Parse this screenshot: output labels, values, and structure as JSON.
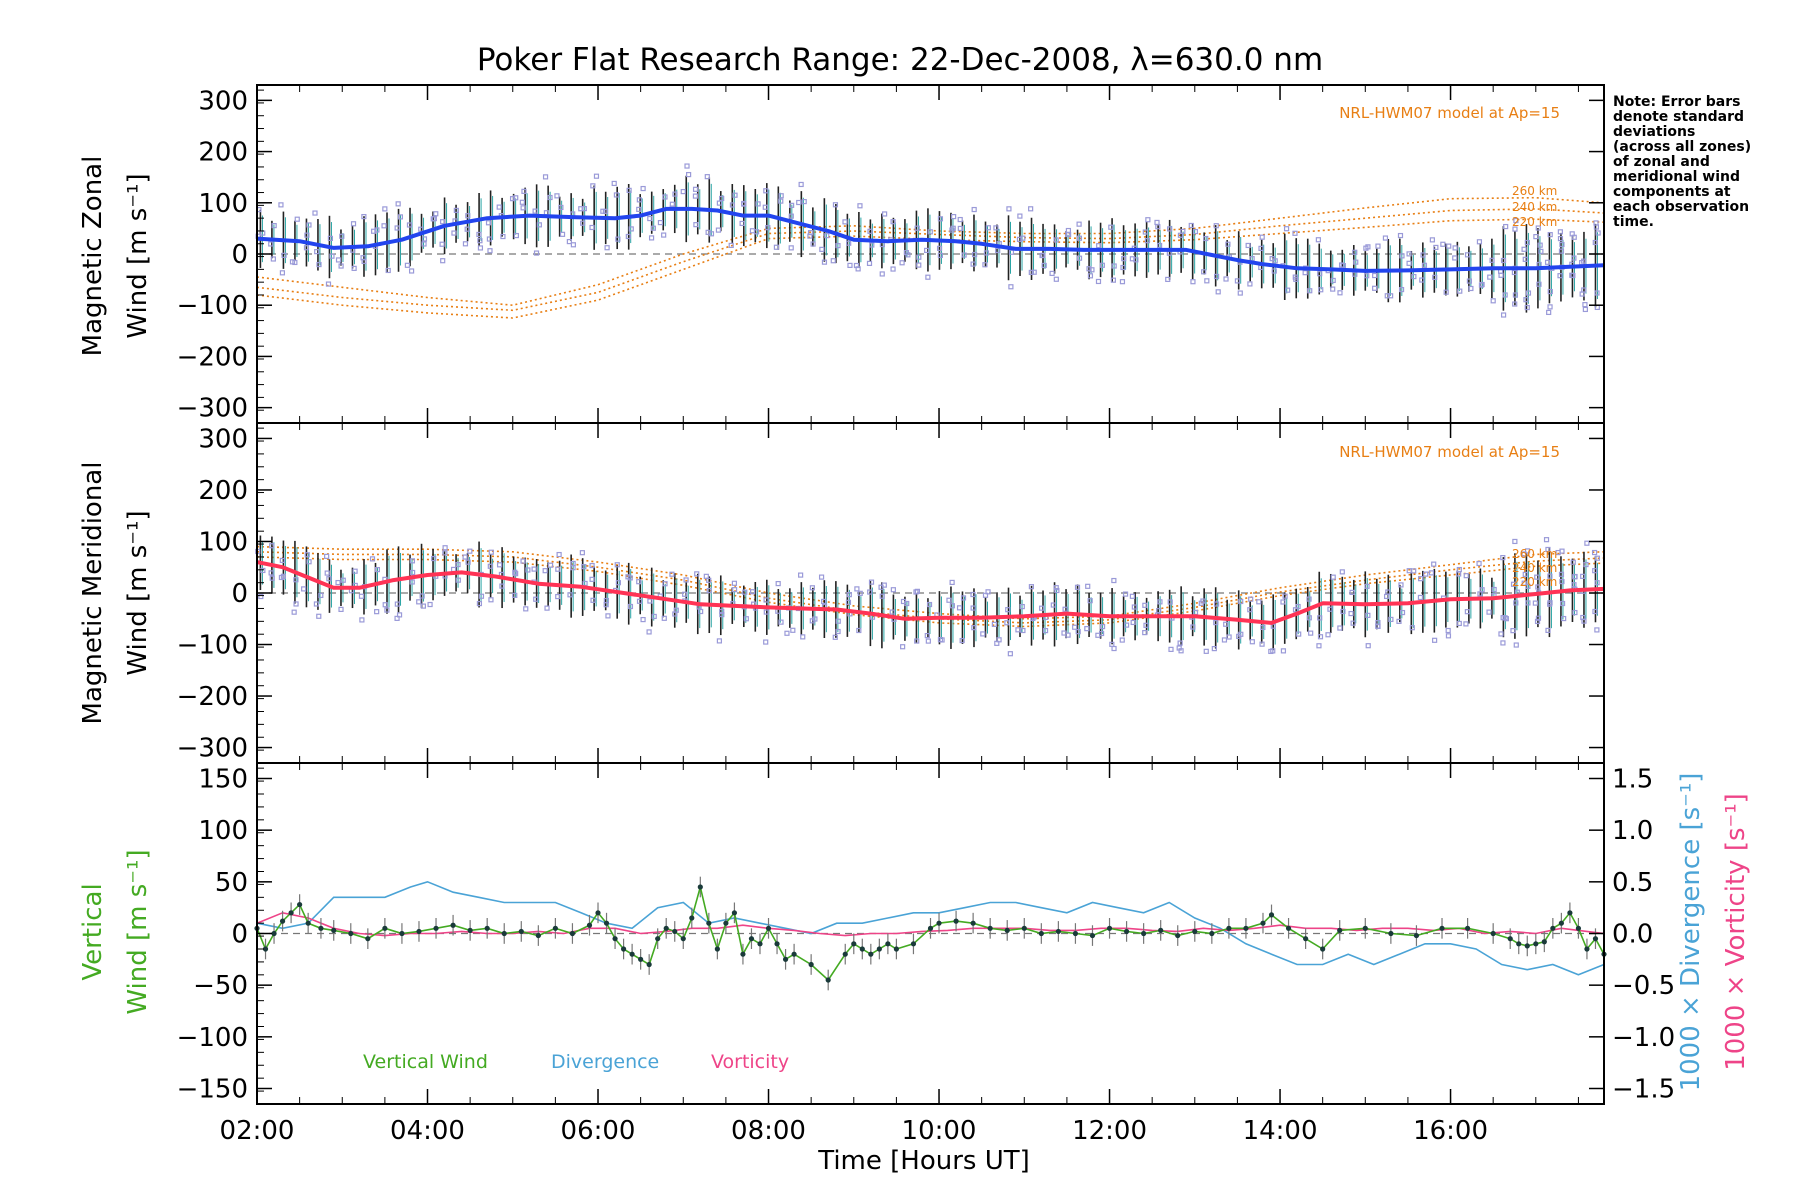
{
  "title": "Poker Flat Research Range: 22-Dec-2008, λ=630.0 nm",
  "note_lines": [
    "Note: Error bars",
    "denote standard",
    "deviations",
    "(across all zones)",
    "of zonal and",
    "meridional wind",
    "components at",
    "each observation",
    "time."
  ],
  "colors": {
    "zonal": "#2244ee",
    "meridional": "#ff3355",
    "model": "#e87f14",
    "vertical": "#44aa22",
    "divergence": "#4aa3d6",
    "vorticity": "#ee4488",
    "zone_points": "#9a9ad8",
    "error_bars": "#222222"
  },
  "x_axis": {
    "label": "Time [Hours UT]",
    "ticks": [
      "02:00",
      "04:00",
      "06:00",
      "08:00",
      "10:00",
      "12:00",
      "14:00",
      "16:00"
    ],
    "tick_values": [
      2,
      4,
      6,
      8,
      10,
      12,
      14,
      16
    ],
    "range": [
      2,
      17.8
    ]
  },
  "chart_data": [
    {
      "type": "line",
      "panel": "zonal",
      "ylabel_line1": "Magnetic Zonal",
      "ylabel_line2": "Wind [m s⁻¹]",
      "ylim": [
        -330,
        330
      ],
      "y_ticks": [
        "300",
        "200",
        "100",
        "0",
        "−100",
        "−200",
        "−300"
      ],
      "y_tick_values": [
        300,
        200,
        100,
        0,
        -100,
        -200,
        -300
      ],
      "model_label": "NRL-HWM07 model at Ap=15",
      "model_altitudes": [
        "260 km",
        "240 km",
        "220 km"
      ],
      "series": [
        {
          "name": "Zonal wind",
          "x": [
            2.0,
            2.5,
            2.9,
            3.3,
            3.7,
            4.2,
            4.7,
            5.2,
            5.7,
            6.2,
            6.5,
            6.8,
            7.1,
            7.4,
            7.7,
            8.0,
            8.3,
            8.7,
            9.0,
            9.4,
            9.8,
            10.2,
            10.5,
            10.9,
            11.3,
            11.7,
            12.1,
            12.5,
            12.9,
            13.2,
            13.5,
            13.8,
            14.2,
            14.6,
            15.0,
            15.5,
            16.0,
            16.5,
            17.0,
            17.4,
            17.8
          ],
          "y": [
            30,
            25,
            12,
            15,
            28,
            55,
            70,
            75,
            72,
            70,
            75,
            88,
            88,
            85,
            75,
            75,
            62,
            45,
            28,
            25,
            28,
            25,
            20,
            10,
            10,
            8,
            8,
            8,
            8,
            -2,
            -12,
            -20,
            -28,
            -30,
            -33,
            -32,
            -30,
            -28,
            -28,
            -25,
            -22
          ]
        },
        {
          "name": "Model 260 km",
          "x": [
            2.0,
            3.0,
            4.0,
            5.0,
            6.0,
            7.0,
            8.0,
            9.0,
            10.0,
            11.0,
            12.0,
            13.0,
            14.0,
            15.0,
            16.0,
            17.0,
            17.8
          ],
          "y": [
            -45,
            -65,
            -85,
            -100,
            -60,
            0,
            50,
            55,
            45,
            40,
            40,
            50,
            70,
            90,
            108,
            110,
            100
          ]
        },
        {
          "name": "Model 240 km",
          "x": [
            2.0,
            3.0,
            4.0,
            5.0,
            6.0,
            7.0,
            8.0,
            9.0,
            10.0,
            11.0,
            12.0,
            13.0,
            14.0,
            15.0,
            16.0,
            17.0,
            17.8
          ],
          "y": [
            -65,
            -85,
            -100,
            -110,
            -75,
            -15,
            40,
            45,
            38,
            32,
            30,
            38,
            55,
            70,
            85,
            88,
            80
          ]
        },
        {
          "name": "Model 220 km",
          "x": [
            2.0,
            3.0,
            4.0,
            5.0,
            6.0,
            7.0,
            8.0,
            9.0,
            10.0,
            11.0,
            12.0,
            13.0,
            14.0,
            15.0,
            16.0,
            17.0,
            17.8
          ],
          "y": [
            -80,
            -100,
            -115,
            -125,
            -90,
            -30,
            30,
            35,
            28,
            24,
            22,
            28,
            40,
            52,
            65,
            68,
            62
          ]
        }
      ]
    },
    {
      "type": "line",
      "panel": "meridional",
      "ylabel_line1": "Magnetic Meridional",
      "ylabel_line2": "Wind [m s⁻¹]",
      "ylim": [
        -330,
        330
      ],
      "y_ticks": [
        "300",
        "200",
        "100",
        "0",
        "−100",
        "−200",
        "−300"
      ],
      "y_tick_values": [
        300,
        200,
        100,
        0,
        -100,
        -200,
        -300
      ],
      "model_label": "NRL-HWM07 model at Ap=15",
      "model_altitudes": [
        "260 km",
        "240 km",
        "220 km"
      ],
      "series": [
        {
          "name": "Meridional wind",
          "x": [
            2.0,
            2.3,
            2.6,
            2.9,
            3.2,
            3.6,
            4.0,
            4.4,
            4.8,
            5.3,
            5.8,
            6.3,
            6.8,
            7.2,
            7.6,
            8.0,
            8.4,
            8.8,
            9.2,
            9.6,
            10.0,
            10.5,
            11.0,
            11.5,
            12.0,
            12.5,
            13.0,
            13.5,
            13.9,
            14.2,
            14.5,
            15.0,
            15.5,
            16.0,
            16.5,
            17.0,
            17.4,
            17.8
          ],
          "y": [
            60,
            50,
            30,
            10,
            10,
            25,
            35,
            40,
            32,
            18,
            12,
            0,
            -12,
            -22,
            -25,
            -28,
            -30,
            -32,
            -40,
            -50,
            -48,
            -48,
            -45,
            -40,
            -45,
            -45,
            -45,
            -52,
            -58,
            -40,
            -20,
            -22,
            -20,
            -12,
            -10,
            -2,
            5,
            8
          ]
        },
        {
          "name": "Model 260 km",
          "x": [
            2.0,
            3.0,
            4.0,
            5.0,
            6.0,
            7.0,
            8.0,
            9.0,
            10.0,
            11.0,
            12.0,
            13.0,
            14.0,
            15.0,
            16.0,
            17.0,
            17.8
          ],
          "y": [
            90,
            85,
            85,
            80,
            60,
            35,
            0,
            -25,
            -40,
            -50,
            -45,
            -20,
            10,
            35,
            55,
            75,
            80
          ]
        },
        {
          "name": "Model 240 km",
          "x": [
            2.0,
            3.0,
            4.0,
            5.0,
            6.0,
            7.0,
            8.0,
            9.0,
            10.0,
            11.0,
            12.0,
            13.0,
            14.0,
            15.0,
            16.0,
            17.0,
            17.8
          ],
          "y": [
            80,
            75,
            75,
            70,
            50,
            25,
            -10,
            -35,
            -50,
            -58,
            -52,
            -28,
            2,
            25,
            45,
            62,
            68
          ]
        },
        {
          "name": "Model 220 km",
          "x": [
            2.0,
            3.0,
            4.0,
            5.0,
            6.0,
            7.0,
            8.0,
            9.0,
            10.0,
            11.0,
            12.0,
            13.0,
            14.0,
            15.0,
            16.0,
            17.0,
            17.8
          ],
          "y": [
            70,
            65,
            65,
            60,
            42,
            15,
            -18,
            -42,
            -58,
            -65,
            -58,
            -35,
            -5,
            18,
            35,
            52,
            58
          ]
        }
      ]
    },
    {
      "type": "line",
      "panel": "vertical",
      "ylabel_line1": "Vertical",
      "ylabel_line2": "Wind [m s⁻¹]",
      "ylim": [
        -165,
        165
      ],
      "y_ticks": [
        "150",
        "100",
        "50",
        "0",
        "−50",
        "−100",
        "−150"
      ],
      "y_tick_values": [
        150,
        100,
        50,
        0,
        -50,
        -100,
        -150
      ],
      "y2_label_divergence": "1000 × Divergence [s⁻¹]",
      "y2_label_vorticity": "1000 × Vorticity [s⁻¹]",
      "y2_ticks": [
        "1.5",
        "1.0",
        "0.5",
        "0.0",
        "−0.5",
        "−1.0",
        "−1.5"
      ],
      "y2_tick_values": [
        1.5,
        1.0,
        0.5,
        0.0,
        -0.5,
        -1.0,
        -1.5
      ],
      "y2lim": [
        -1.65,
        1.65
      ],
      "legend": [
        "Vertical Wind",
        "Divergence",
        "Vorticity"
      ],
      "series": [
        {
          "name": "Vertical Wind",
          "x": [
            2.0,
            2.1,
            2.2,
            2.3,
            2.4,
            2.5,
            2.6,
            2.75,
            2.9,
            3.1,
            3.3,
            3.5,
            3.7,
            3.9,
            4.1,
            4.3,
            4.5,
            4.7,
            4.9,
            5.1,
            5.3,
            5.5,
            5.7,
            5.9,
            6.0,
            6.1,
            6.2,
            6.3,
            6.4,
            6.5,
            6.6,
            6.7,
            6.8,
            6.9,
            7.0,
            7.1,
            7.2,
            7.3,
            7.4,
            7.5,
            7.6,
            7.7,
            7.8,
            7.9,
            8.0,
            8.1,
            8.2,
            8.3,
            8.5,
            8.7,
            8.9,
            9.0,
            9.1,
            9.2,
            9.3,
            9.4,
            9.5,
            9.7,
            9.9,
            10.0,
            10.2,
            10.4,
            10.6,
            10.8,
            11.0,
            11.2,
            11.4,
            11.6,
            11.8,
            12.0,
            12.2,
            12.4,
            12.6,
            12.8,
            13.0,
            13.2,
            13.4,
            13.6,
            13.8,
            13.9,
            14.1,
            14.3,
            14.5,
            14.7,
            15.0,
            15.3,
            15.6,
            15.9,
            16.2,
            16.5,
            16.7,
            16.8,
            16.9,
            17.0,
            17.1,
            17.2,
            17.3,
            17.4,
            17.5,
            17.6,
            17.7,
            17.8
          ],
          "y": [
            5,
            -15,
            0,
            12,
            20,
            28,
            10,
            5,
            3,
            0,
            -5,
            5,
            0,
            2,
            5,
            8,
            3,
            5,
            0,
            2,
            -2,
            5,
            0,
            8,
            20,
            10,
            -5,
            -15,
            -20,
            -25,
            -30,
            -5,
            5,
            2,
            -5,
            15,
            45,
            10,
            -15,
            10,
            20,
            -20,
            -5,
            -10,
            5,
            -10,
            -25,
            -20,
            -30,
            -45,
            -20,
            -10,
            -15,
            -20,
            -15,
            -10,
            -15,
            -10,
            5,
            10,
            12,
            10,
            5,
            3,
            5,
            0,
            2,
            0,
            -2,
            5,
            2,
            0,
            3,
            -2,
            2,
            0,
            5,
            5,
            10,
            18,
            5,
            -5,
            -15,
            3,
            5,
            0,
            -2,
            5,
            5,
            0,
            -5,
            -10,
            -12,
            -10,
            -8,
            5,
            10,
            20,
            5,
            -15,
            -5,
            -20
          ]
        },
        {
          "name": "Divergence",
          "x": [
            2.0,
            2.3,
            2.6,
            2.9,
            3.2,
            3.5,
            3.8,
            4.0,
            4.3,
            4.6,
            4.9,
            5.2,
            5.5,
            5.8,
            6.1,
            6.4,
            6.7,
            7.0,
            7.3,
            7.6,
            7.9,
            8.2,
            8.5,
            8.8,
            9.1,
            9.4,
            9.7,
            10.0,
            10.3,
            10.6,
            10.9,
            11.2,
            11.5,
            11.8,
            12.1,
            12.4,
            12.7,
            13.0,
            13.3,
            13.6,
            13.9,
            14.2,
            14.5,
            14.8,
            15.1,
            15.4,
            15.7,
            16.0,
            16.3,
            16.6,
            16.9,
            17.2,
            17.5,
            17.8
          ],
          "y": [
            0.1,
            0.05,
            0.1,
            0.35,
            0.35,
            0.35,
            0.45,
            0.5,
            0.4,
            0.35,
            0.3,
            0.3,
            0.3,
            0.2,
            0.1,
            0.05,
            0.25,
            0.3,
            0.1,
            0.15,
            0.1,
            0.05,
            0.0,
            0.1,
            0.1,
            0.15,
            0.2,
            0.2,
            0.25,
            0.3,
            0.3,
            0.25,
            0.2,
            0.3,
            0.25,
            0.2,
            0.3,
            0.15,
            0.05,
            -0.1,
            -0.2,
            -0.3,
            -0.3,
            -0.2,
            -0.3,
            -0.2,
            -0.1,
            -0.1,
            -0.15,
            -0.3,
            -0.35,
            -0.3,
            -0.4,
            -0.3
          ]
        },
        {
          "name": "Vorticity",
          "x": [
            2.0,
            2.3,
            2.6,
            2.9,
            3.2,
            3.5,
            3.8,
            4.1,
            4.4,
            4.7,
            5.0,
            5.3,
            5.6,
            5.9,
            6.2,
            6.5,
            6.8,
            7.1,
            7.4,
            7.7,
            8.0,
            8.3,
            8.6,
            8.9,
            9.2,
            9.5,
            9.8,
            10.1,
            10.4,
            10.7,
            11.0,
            11.3,
            11.6,
            11.9,
            12.2,
            12.5,
            12.8,
            13.1,
            13.4,
            13.7,
            14.0,
            14.3,
            14.6,
            14.9,
            15.2,
            15.5,
            15.8,
            16.1,
            16.4,
            16.7,
            17.0,
            17.3,
            17.6,
            17.8
          ],
          "y": [
            0.1,
            0.2,
            0.15,
            0.05,
            0.0,
            -0.02,
            0.0,
            0.0,
            0.02,
            0.0,
            0.0,
            0.02,
            0.0,
            0.05,
            0.05,
            0.0,
            0.02,
            0.05,
            0.05,
            0.08,
            0.05,
            0.03,
            0.0,
            -0.02,
            0.0,
            0.0,
            0.02,
            0.03,
            0.05,
            0.05,
            0.05,
            0.03,
            0.03,
            0.05,
            0.05,
            0.03,
            0.02,
            0.05,
            0.03,
            0.05,
            0.08,
            0.05,
            0.05,
            0.03,
            0.05,
            0.05,
            0.03,
            0.05,
            0.0,
            0.02,
            0.0,
            0.05,
            0.02,
            0.0
          ]
        }
      ]
    }
  ]
}
